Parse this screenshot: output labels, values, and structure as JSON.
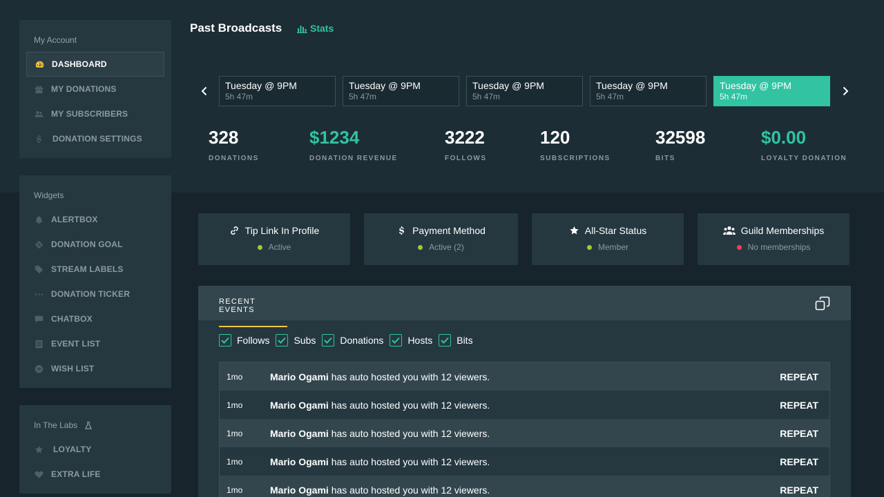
{
  "sidebar": {
    "account": {
      "heading": "My Account",
      "items": [
        {
          "label": "DASHBOARD",
          "icon": "gauge-icon"
        },
        {
          "label": "MY DONATIONS",
          "icon": "gift-icon"
        },
        {
          "label": "MY SUBSCRIBERS",
          "icon": "users-icon"
        },
        {
          "label": "DONATION SETTINGS",
          "icon": "dollar-icon"
        }
      ]
    },
    "widgets": {
      "heading": "Widgets",
      "items": [
        {
          "label": "ALERTBOX",
          "icon": "bell-icon"
        },
        {
          "label": "DONATION GOAL",
          "icon": "target-icon"
        },
        {
          "label": "STREAM LABELS",
          "icon": "tag-icon"
        },
        {
          "label": "DONATION TICKER",
          "icon": "ellipsis-icon"
        },
        {
          "label": "CHATBOX",
          "icon": "chat-icon"
        },
        {
          "label": "EVENT LIST",
          "icon": "list-icon"
        },
        {
          "label": "WISH LIST",
          "icon": "wishlist-icon"
        }
      ]
    },
    "labs": {
      "heading": "In The Labs",
      "items": [
        {
          "label": "LOYALTY",
          "icon": "star-icon"
        },
        {
          "label": "EXTRA LIFE",
          "icon": "heart-icon"
        }
      ]
    }
  },
  "header": {
    "title": "Past Broadcasts",
    "stats_link": "Stats"
  },
  "broadcasts": [
    {
      "title": "Tuesday @ 9PM",
      "duration": "5h 47m"
    },
    {
      "title": "Tuesday @ 9PM",
      "duration": "5h 47m"
    },
    {
      "title": "Tuesday @ 9PM",
      "duration": "5h 47m"
    },
    {
      "title": "Tuesday @ 9PM",
      "duration": "5h 47m"
    },
    {
      "title": "Tuesday @ 9PM",
      "duration": "5h 47m"
    }
  ],
  "stats": [
    {
      "value": "328",
      "label": "DONATIONS"
    },
    {
      "value": "$1234",
      "label": "DONATION REVENUE"
    },
    {
      "value": "3222",
      "label": "FOLLOWS"
    },
    {
      "value": "120",
      "label": "SUBSCRIPTIONS"
    },
    {
      "value": "32598",
      "label": "BITS"
    },
    {
      "value": "$0.00",
      "label": "LOYALTY DONATION"
    }
  ],
  "cards": [
    {
      "title": "Tip Link In Profile",
      "status": "Active",
      "status_color": "#9acd32",
      "icon": "link-icon"
    },
    {
      "title": "Payment Method",
      "status": "Active (2)",
      "status_color": "#9acd32",
      "icon": "dollar-icon"
    },
    {
      "title": "All-Star Status",
      "status": "Member",
      "status_color": "#9acd32",
      "icon": "star-icon"
    },
    {
      "title": "Guild Memberships",
      "status": "No memberships",
      "status_color": "#f0424f",
      "icon": "users-icon"
    }
  ],
  "events": {
    "tab_label": "RECENT EVENTS",
    "filters": [
      "Follows",
      "Subs",
      "Donations",
      "Hosts",
      "Bits"
    ],
    "rows": [
      {
        "time": "1mo",
        "name": "Mario Ogami",
        "text": "has auto hosted you with 12 viewers.",
        "action": "REPEAT"
      },
      {
        "time": "1mo",
        "name": "Mario Ogami",
        "text": "has auto hosted you with 12 viewers.",
        "action": "REPEAT"
      },
      {
        "time": "1mo",
        "name": "Mario Ogami",
        "text": "has auto hosted you with 12 viewers.",
        "action": "REPEAT"
      },
      {
        "time": "1mo",
        "name": "Mario Ogami",
        "text": "has auto hosted you with 12 viewers.",
        "action": "REPEAT"
      },
      {
        "time": "1mo",
        "name": "Mario Ogami",
        "text": "has auto hosted you with 12 viewers.",
        "action": "REPEAT"
      }
    ]
  },
  "colors": {
    "accent": "#31c3a2",
    "highlight": "#f4c542"
  }
}
